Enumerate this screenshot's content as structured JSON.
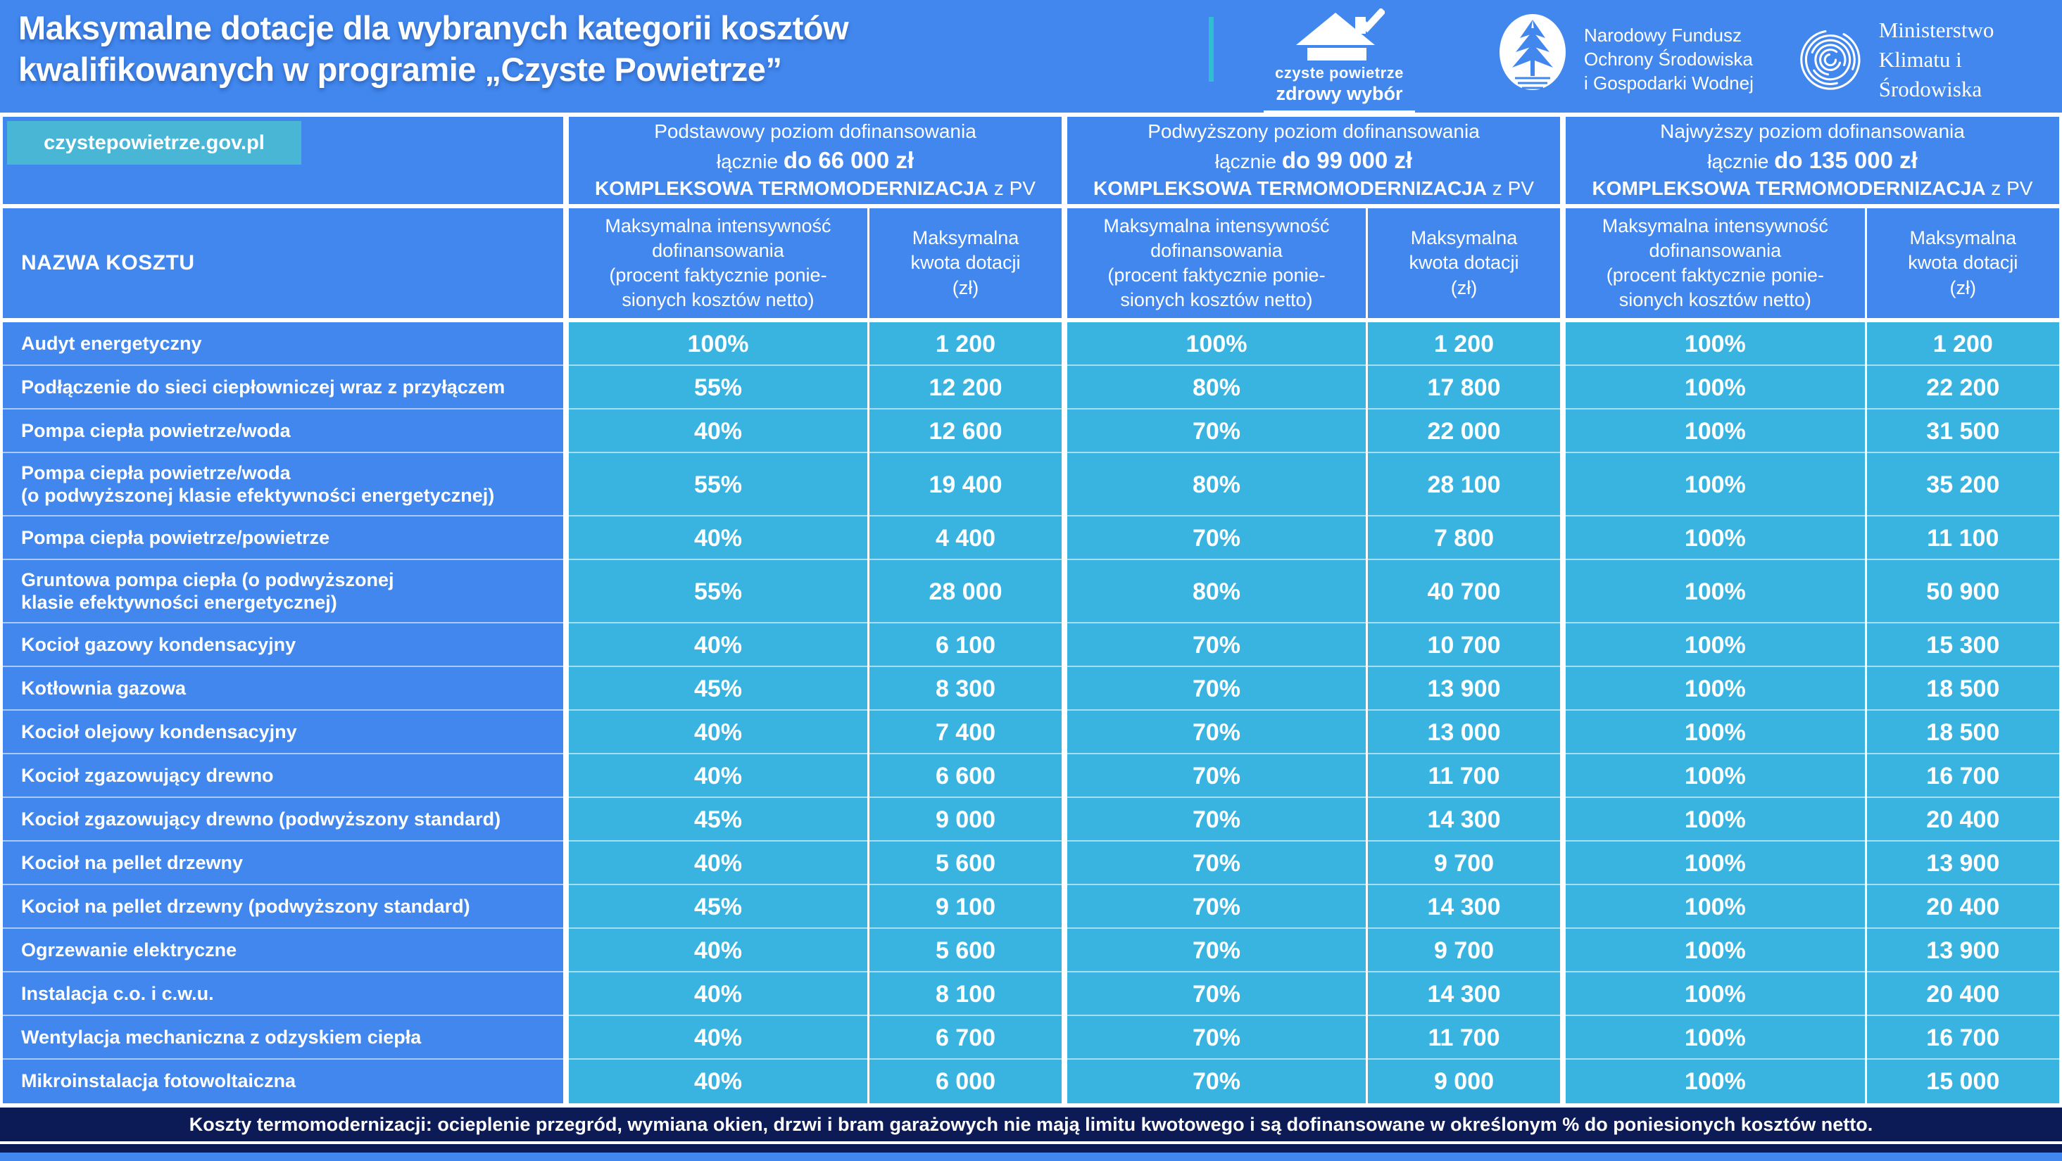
{
  "header": {
    "title_line1": "Maksymalne dotacje dla wybranych kategorii kosztów",
    "title_line2": "kwalifikowanych w programie „Czyste Powietrze”",
    "logos": {
      "czyste_powietrze": {
        "line1": "czyste powietrze",
        "line2": "zdrowy wybór"
      },
      "nfosigw": {
        "line1": "Narodowy Fundusz",
        "line2": "Ochrony Środowiska",
        "line3": "i Gospodarki Wodnej"
      },
      "ministry": {
        "line1": "Ministerstwo",
        "line2": "Klimatu i Środowiska"
      }
    }
  },
  "badge": {
    "url": "czystepowietrze.gov.pl"
  },
  "colors": {
    "primary_blue": "#4187ee",
    "cell_cyan": "#39b4e1",
    "badge_cyan": "#49b6d6",
    "teal_accent": "#2fc0cf",
    "footer_navy": "#0c1a56"
  },
  "table": {
    "name_column_header": "NAZWA KOSZTU",
    "sub_headers": {
      "intensity": "Maksymalna intensywność\ndofinansowania\n(procent faktycznie ponie-\nsionych kosztów netto)",
      "amount": "Maksymalna\nkwota dotacji\n(zł)"
    },
    "groups": [
      {
        "title": "Podstawowy poziom dofinansowania",
        "total_prefix": "łącznie ",
        "total_bold": "do 66 000 zł",
        "komplex_bold": "KOMPLEKSOWA TERMOMODERNIZACJA",
        "komplex_suffix": " z PV"
      },
      {
        "title": "Podwyższony poziom dofinansowania",
        "total_prefix": "łącznie ",
        "total_bold": "do 99 000 zł",
        "komplex_bold": "KOMPLEKSOWA TERMOMODERNIZACJA",
        "komplex_suffix": " z PV"
      },
      {
        "title": "Najwyższy poziom dofinansowania",
        "total_prefix": "łącznie ",
        "total_bold": "do 135 000 zł",
        "komplex_bold": "KOMPLEKSOWA TERMOMODERNIZACJA",
        "komplex_suffix": " z PV"
      }
    ],
    "rows": [
      {
        "name": "Audyt energetyczny",
        "tall": false,
        "values": [
          [
            "100%",
            "1 200"
          ],
          [
            "100%",
            "1 200"
          ],
          [
            "100%",
            "1 200"
          ]
        ]
      },
      {
        "name": "Podłączenie do sieci ciepłowniczej wraz z przyłączem",
        "tall": false,
        "values": [
          [
            "55%",
            "12 200"
          ],
          [
            "80%",
            "17 800"
          ],
          [
            "100%",
            "22 200"
          ]
        ]
      },
      {
        "name": "Pompa ciepła powietrze/woda",
        "tall": false,
        "values": [
          [
            "40%",
            "12 600"
          ],
          [
            "70%",
            "22 000"
          ],
          [
            "100%",
            "31 500"
          ]
        ]
      },
      {
        "name": "Pompa ciepła powietrze/woda\n(o podwyższonej klasie efektywności energetycznej)",
        "tall": true,
        "values": [
          [
            "55%",
            "19 400"
          ],
          [
            "80%",
            "28 100"
          ],
          [
            "100%",
            "35 200"
          ]
        ]
      },
      {
        "name": "Pompa ciepła powietrze/powietrze",
        "tall": false,
        "values": [
          [
            "40%",
            "4 400"
          ],
          [
            "70%",
            "7 800"
          ],
          [
            "100%",
            "11 100"
          ]
        ]
      },
      {
        "name": "Gruntowa pompa ciepła (o podwyższonej\nklasie efektywności energetycznej)",
        "tall": true,
        "values": [
          [
            "55%",
            "28 000"
          ],
          [
            "80%",
            "40 700"
          ],
          [
            "100%",
            "50 900"
          ]
        ]
      },
      {
        "name": "Kocioł gazowy kondensacyjny",
        "tall": false,
        "values": [
          [
            "40%",
            "6 100"
          ],
          [
            "70%",
            "10 700"
          ],
          [
            "100%",
            "15 300"
          ]
        ]
      },
      {
        "name": "Kotłownia gazowa",
        "tall": false,
        "values": [
          [
            "45%",
            "8 300"
          ],
          [
            "70%",
            "13 900"
          ],
          [
            "100%",
            "18 500"
          ]
        ]
      },
      {
        "name": "Kocioł olejowy kondensacyjny",
        "tall": false,
        "values": [
          [
            "40%",
            "7 400"
          ],
          [
            "70%",
            "13 000"
          ],
          [
            "100%",
            "18 500"
          ]
        ]
      },
      {
        "name": "Kocioł zgazowujący drewno",
        "tall": false,
        "values": [
          [
            "40%",
            "6 600"
          ],
          [
            "70%",
            "11 700"
          ],
          [
            "100%",
            "16 700"
          ]
        ]
      },
      {
        "name": "Kocioł zgazowujący drewno (podwyższony standard)",
        "tall": false,
        "values": [
          [
            "45%",
            "9 000"
          ],
          [
            "70%",
            "14 300"
          ],
          [
            "100%",
            "20 400"
          ]
        ]
      },
      {
        "name": "Kocioł na pellet drzewny",
        "tall": false,
        "values": [
          [
            "40%",
            "5 600"
          ],
          [
            "70%",
            "9 700"
          ],
          [
            "100%",
            "13 900"
          ]
        ]
      },
      {
        "name": "Kocioł na pellet drzewny (podwyższony standard)",
        "tall": false,
        "values": [
          [
            "45%",
            "9 100"
          ],
          [
            "70%",
            "14 300"
          ],
          [
            "100%",
            "20 400"
          ]
        ]
      },
      {
        "name": "Ogrzewanie elektryczne",
        "tall": false,
        "values": [
          [
            "40%",
            "5 600"
          ],
          [
            "70%",
            "9 700"
          ],
          [
            "100%",
            "13 900"
          ]
        ]
      },
      {
        "name": "Instalacja c.o. i c.w.u.",
        "tall": false,
        "values": [
          [
            "40%",
            "8 100"
          ],
          [
            "70%",
            "14 300"
          ],
          [
            "100%",
            "20 400"
          ]
        ]
      },
      {
        "name": "Wentylacja mechaniczna z odzyskiem ciepła",
        "tall": false,
        "values": [
          [
            "40%",
            "6 700"
          ],
          [
            "70%",
            "11 700"
          ],
          [
            "100%",
            "16 700"
          ]
        ]
      },
      {
        "name": "Mikroinstalacja fotowoltaiczna",
        "tall": false,
        "values": [
          [
            "40%",
            "6 000"
          ],
          [
            "70%",
            "9 000"
          ],
          [
            "100%",
            "15 000"
          ]
        ]
      }
    ]
  },
  "footer": {
    "text": "Koszty  termomodernizacji: ocieplenie przegród, wymiana okien, drzwi i bram garażowych nie mają limitu kwotowego i są dofinansowane w określonym % do poniesionych kosztów netto."
  }
}
